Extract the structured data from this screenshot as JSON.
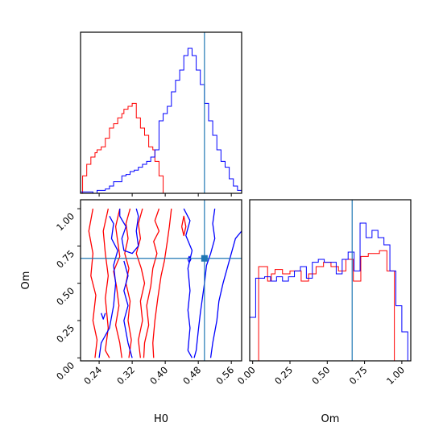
{
  "chart_data": [
    {
      "panel": "H0 marginal (top-left)",
      "type": "histogram",
      "x_range": [
        0.195,
        0.585
      ],
      "xticks": [
        0.24,
        0.32,
        0.4,
        0.48,
        0.56
      ],
      "truth_x": 0.495,
      "series": [
        {
          "color": "#ff0000",
          "bin_edges": [
            0.2,
            0.205,
            0.21,
            0.215,
            0.22,
            0.225,
            0.23,
            0.235,
            0.24,
            0.245,
            0.25,
            0.255,
            0.26,
            0.265,
            0.27,
            0.275,
            0.28,
            0.285,
            0.29,
            0.295,
            0.3,
            0.305,
            0.31,
            0.315,
            0.32,
            0.325,
            0.33,
            0.335,
            0.34,
            0.345,
            0.35,
            0.355,
            0.36,
            0.365,
            0.37,
            0.375,
            0.38,
            0.385,
            0.39,
            0.395,
            0.4
          ],
          "counts": [
            0.12,
            0.12,
            0.2,
            0.2,
            0.25,
            0.25,
            0.28,
            0.3,
            0.3,
            0.32,
            0.32,
            0.38,
            0.38,
            0.45,
            0.45,
            0.48,
            0.48,
            0.52,
            0.52,
            0.55,
            0.58,
            0.58,
            0.6,
            0.6,
            0.62,
            0.62,
            0.52,
            0.52,
            0.45,
            0.45,
            0.4,
            0.4,
            0.32,
            0.32,
            0.3,
            0.22,
            0.22,
            0.12,
            0.12,
            0.0
          ]
        },
        {
          "color": "#0000ff",
          "bin_edges": [
            0.195,
            0.205,
            0.215,
            0.225,
            0.235,
            0.245,
            0.255,
            0.265,
            0.275,
            0.285,
            0.295,
            0.305,
            0.315,
            0.325,
            0.335,
            0.345,
            0.355,
            0.365,
            0.375,
            0.385,
            0.395,
            0.405,
            0.415,
            0.425,
            0.435,
            0.445,
            0.455,
            0.465,
            0.475,
            0.485,
            0.495,
            0.505,
            0.515,
            0.525,
            0.535,
            0.545,
            0.555,
            0.565,
            0.575,
            0.585
          ],
          "counts": [
            0.01,
            0.01,
            0.01,
            0.0,
            0.02,
            0.02,
            0.03,
            0.05,
            0.08,
            0.08,
            0.12,
            0.13,
            0.15,
            0.16,
            0.18,
            0.2,
            0.22,
            0.25,
            0.3,
            0.5,
            0.55,
            0.6,
            0.7,
            0.78,
            0.85,
            0.95,
            1.0,
            0.95,
            0.85,
            0.75,
            0.62,
            0.5,
            0.4,
            0.3,
            0.22,
            0.18,
            0.1,
            0.05,
            0.02
          ]
        }
      ]
    },
    {
      "panel": "H0 vs Om contours (bottom-left)",
      "type": "contour",
      "xlabel": "H0",
      "ylabel": "Om",
      "x_range": [
        0.195,
        0.585
      ],
      "y_range": [
        -0.02,
        1.06
      ],
      "xticks": [
        "0.24",
        "0.32",
        "0.40",
        "0.48",
        "0.56"
      ],
      "yticks": [
        "0.00",
        "0.25",
        "0.50",
        "0.75",
        "1.00"
      ],
      "truth": {
        "x": 0.495,
        "y": 0.667
      },
      "contours": [
        {
          "color": "#ff0000",
          "points": [
            [
              0.225,
              1.0
            ],
            [
              0.215,
              0.85
            ],
            [
              0.225,
              0.7
            ],
            [
              0.22,
              0.55
            ],
            [
              0.232,
              0.42
            ],
            [
              0.225,
              0.25
            ],
            [
              0.235,
              0.12
            ],
            [
              0.23,
              0.0
            ]
          ]
        },
        {
          "color": "#ff0000",
          "points": [
            [
              0.262,
              1.0
            ],
            [
              0.25,
              0.85
            ],
            [
              0.255,
              0.7
            ],
            [
              0.262,
              0.55
            ],
            [
              0.255,
              0.4
            ],
            [
              0.262,
              0.2
            ],
            [
              0.255,
              0.05
            ],
            [
              0.265,
              0.0
            ]
          ]
        },
        {
          "color": "#ff0000",
          "points": [
            [
              0.29,
              1.0
            ],
            [
              0.28,
              0.88
            ],
            [
              0.285,
              0.78
            ],
            [
              0.29,
              0.68
            ],
            [
              0.275,
              0.58
            ],
            [
              0.282,
              0.48
            ],
            [
              0.288,
              0.35
            ],
            [
              0.28,
              0.22
            ],
            [
              0.29,
              0.1
            ],
            [
              0.295,
              0.0
            ]
          ]
        },
        {
          "color": "#ff0000",
          "points": [
            [
              0.315,
              1.0
            ],
            [
              0.305,
              0.9
            ],
            [
              0.31,
              0.8
            ],
            [
              0.302,
              0.7
            ],
            [
              0.312,
              0.6
            ],
            [
              0.305,
              0.5
            ],
            [
              0.315,
              0.38
            ],
            [
              0.31,
              0.25
            ],
            [
              0.318,
              0.12
            ],
            [
              0.312,
              0.0
            ]
          ]
        },
        {
          "color": "#ff0000",
          "points": [
            [
              0.345,
              1.0
            ],
            [
              0.335,
              0.9
            ],
            [
              0.34,
              0.8
            ],
            [
              0.33,
              0.7
            ],
            [
              0.342,
              0.6
            ],
            [
              0.35,
              0.5
            ],
            [
              0.34,
              0.38
            ],
            [
              0.345,
              0.25
            ],
            [
              0.335,
              0.12
            ],
            [
              0.34,
              0.0
            ]
          ]
        },
        {
          "color": "#ff0000",
          "points": [
            [
              0.385,
              1.0
            ],
            [
              0.375,
              0.92
            ],
            [
              0.385,
              0.85
            ],
            [
              0.372,
              0.78
            ],
            [
              0.38,
              0.7
            ],
            [
              0.37,
              0.6
            ],
            [
              0.365,
              0.48
            ],
            [
              0.355,
              0.35
            ],
            [
              0.36,
              0.22
            ],
            [
              0.35,
              0.1
            ],
            [
              0.348,
              0.0
            ]
          ]
        },
        {
          "color": "#ff0000",
          "points": [
            [
              0.415,
              1.0
            ],
            [
              0.41,
              0.88
            ],
            [
              0.405,
              0.78
            ],
            [
              0.398,
              0.65
            ],
            [
              0.39,
              0.55
            ],
            [
              0.382,
              0.4
            ],
            [
              0.375,
              0.25
            ],
            [
              0.37,
              0.1
            ],
            [
              0.372,
              0.0
            ]
          ]
        },
        {
          "color": "#0000ff",
          "points": [
            [
              0.29,
              1.0
            ],
            [
              0.29,
              0.95
            ],
            [
              0.305,
              0.88
            ],
            [
              0.295,
              0.8
            ],
            [
              0.3,
              0.72
            ],
            [
              0.32,
              0.7
            ],
            [
              0.335,
              0.75
            ],
            [
              0.33,
              0.85
            ],
            [
              0.335,
              0.95
            ],
            [
              0.33,
              1.0
            ]
          ]
        },
        {
          "color": "#0000ff",
          "points": [
            [
              0.265,
              0.95
            ],
            [
              0.275,
              0.9
            ],
            [
              0.27,
              0.8
            ],
            [
              0.285,
              0.72
            ],
            [
              0.275,
              0.62
            ],
            [
              0.28,
              0.5
            ],
            [
              0.275,
              0.35
            ],
            [
              0.265,
              0.2
            ],
            [
              0.245,
              0.1
            ],
            [
              0.24,
              0.0
            ]
          ]
        },
        {
          "color": "#0000ff",
          "points": [
            [
              0.3,
              0.65
            ],
            [
              0.31,
              0.55
            ],
            [
              0.3,
              0.45
            ],
            [
              0.31,
              0.35
            ],
            [
              0.3,
              0.25
            ],
            [
              0.31,
              0.1
            ],
            [
              0.32,
              0.0
            ]
          ]
        },
        {
          "color": "#0000ff",
          "points": [
            [
              0.445,
              1.0
            ],
            [
              0.46,
              0.92
            ],
            [
              0.45,
              0.82
            ],
            [
              0.465,
              0.72
            ],
            [
              0.455,
              0.6
            ],
            [
              0.46,
              0.45
            ],
            [
              0.455,
              0.32
            ],
            [
              0.46,
              0.2
            ],
            [
              0.455,
              0.05
            ],
            [
              0.465,
              0.0
            ]
          ]
        },
        {
          "color": "#0000ff",
          "points": [
            [
              0.52,
              1.0
            ],
            [
              0.515,
              0.9
            ],
            [
              0.52,
              0.8
            ],
            [
              0.51,
              0.7
            ],
            [
              0.5,
              0.62
            ],
            [
              0.495,
              0.5
            ],
            [
              0.49,
              0.4
            ],
            [
              0.485,
              0.3
            ],
            [
              0.48,
              0.18
            ],
            [
              0.475,
              0.05
            ],
            [
              0.47,
              0.0
            ]
          ]
        },
        {
          "color": "#0000ff",
          "points": [
            [
              0.585,
              0.85
            ],
            [
              0.57,
              0.8
            ],
            [
              0.56,
              0.7
            ],
            [
              0.55,
              0.6
            ],
            [
              0.54,
              0.5
            ],
            [
              0.53,
              0.38
            ],
            [
              0.525,
              0.25
            ],
            [
              0.515,
              0.1
            ],
            [
              0.51,
              0.0
            ]
          ]
        },
        {
          "color": "#0000ff",
          "points": [
            [
              0.455,
              0.66
            ],
            [
              0.458,
              0.68
            ],
            [
              0.462,
              0.66
            ],
            [
              0.458,
              0.64
            ],
            [
              0.455,
              0.66
            ]
          ]
        },
        {
          "color": "#0000ff",
          "points": [
            [
              0.245,
              0.3
            ],
            [
              0.25,
              0.26
            ],
            [
              0.255,
              0.3
            ]
          ]
        },
        {
          "color": "#ff0000",
          "points": [
            [
              0.44,
              0.88
            ],
            [
              0.445,
              0.95
            ],
            [
              0.45,
              0.88
            ],
            [
              0.445,
              0.82
            ],
            [
              0.44,
              0.88
            ]
          ]
        }
      ]
    },
    {
      "panel": "Om marginal (bottom-right)",
      "type": "histogram",
      "xlabel": "Om",
      "x_range": [
        -0.02,
        1.06
      ],
      "xticks": [
        "0.00",
        "0.25",
        "0.50",
        "0.75",
        "1.00"
      ],
      "truth_x": 0.667,
      "series": [
        {
          "color": "#ff0000",
          "bin_edges": [
            0.0,
            0.02,
            0.04,
            0.06,
            0.08,
            0.1,
            0.125,
            0.15,
            0.175,
            0.2,
            0.225,
            0.25,
            0.275,
            0.3,
            0.325,
            0.35,
            0.375,
            0.4,
            0.425,
            0.45,
            0.475,
            0.5,
            0.525,
            0.55,
            0.575,
            0.6,
            0.625,
            0.65,
            0.675,
            0.7,
            0.725,
            0.75,
            0.775,
            0.8,
            0.825,
            0.85,
            0.875,
            0.9,
            0.925,
            0.95,
            0.975,
            1.0
          ],
          "counts": [
            0.0,
            0.0,
            0.65,
            0.65,
            0.65,
            0.55,
            0.6,
            0.63,
            0.63,
            0.6,
            0.6,
            0.62,
            0.62,
            0.62,
            0.55,
            0.55,
            0.6,
            0.6,
            0.65,
            0.65,
            0.68,
            0.68,
            0.65,
            0.65,
            0.62,
            0.62,
            0.7,
            0.7,
            0.55,
            0.55,
            0.72,
            0.72,
            0.74,
            0.74,
            0.74,
            0.76,
            0.76,
            0.62,
            0.62,
            0.0,
            0.0
          ]
        },
        {
          "color": "#0000ff",
          "bin_edges": [
            -0.02,
            0.02,
            0.04,
            0.08,
            0.12,
            0.16,
            0.2,
            0.24,
            0.28,
            0.32,
            0.36,
            0.4,
            0.44,
            0.48,
            0.52,
            0.56,
            0.6,
            0.64,
            0.68,
            0.72,
            0.76,
            0.8,
            0.84,
            0.88,
            0.92,
            0.96,
            1.0,
            1.04
          ],
          "counts": [
            0.3,
            0.57,
            0.57,
            0.58,
            0.55,
            0.58,
            0.55,
            0.58,
            0.62,
            0.65,
            0.57,
            0.68,
            0.7,
            0.68,
            0.68,
            0.6,
            0.7,
            0.75,
            0.62,
            0.95,
            0.85,
            0.9,
            0.85,
            0.8,
            0.62,
            0.38,
            0.2
          ]
        }
      ]
    }
  ]
}
